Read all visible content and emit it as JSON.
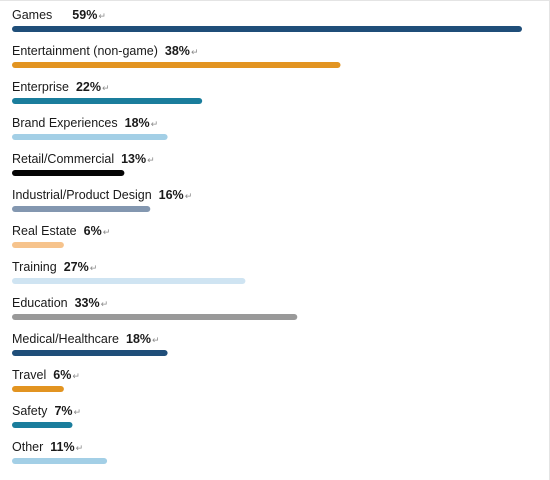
{
  "chart_data": {
    "type": "bar",
    "orientation": "horizontal",
    "value_unit": "%",
    "max_value": 59,
    "categories": [
      "Games",
      "Entertainment (non-game)",
      "Enterprise",
      "Brand Experiences",
      "Retail/Commercial",
      "Industrial/Product Design",
      "Real Estate",
      "Training",
      "Education",
      "Medical/Healthcare",
      "Travel",
      "Safety",
      "Other"
    ],
    "values": [
      59,
      38,
      22,
      18,
      13,
      16,
      6,
      27,
      33,
      18,
      6,
      7,
      11
    ],
    "value_labels": [
      "59%",
      "38%",
      "22%",
      "18%",
      "13%",
      "16%",
      "6%",
      "27%",
      "33%",
      "18%",
      "6%",
      "7%",
      "11%"
    ],
    "bar_colors": [
      "#1f4e79",
      "#e29421",
      "#1a7d9c",
      "#a3cfe6",
      "#050505",
      "#8397b0",
      "#f6c38c",
      "#cfe4f2",
      "#999999",
      "#1f4e79",
      "#e29421",
      "#1a7d9c",
      "#a3cfe6"
    ],
    "paragraph_mark": "↵",
    "title": "",
    "xlabel": "",
    "ylabel": "",
    "legend": "none",
    "grid": false
  }
}
